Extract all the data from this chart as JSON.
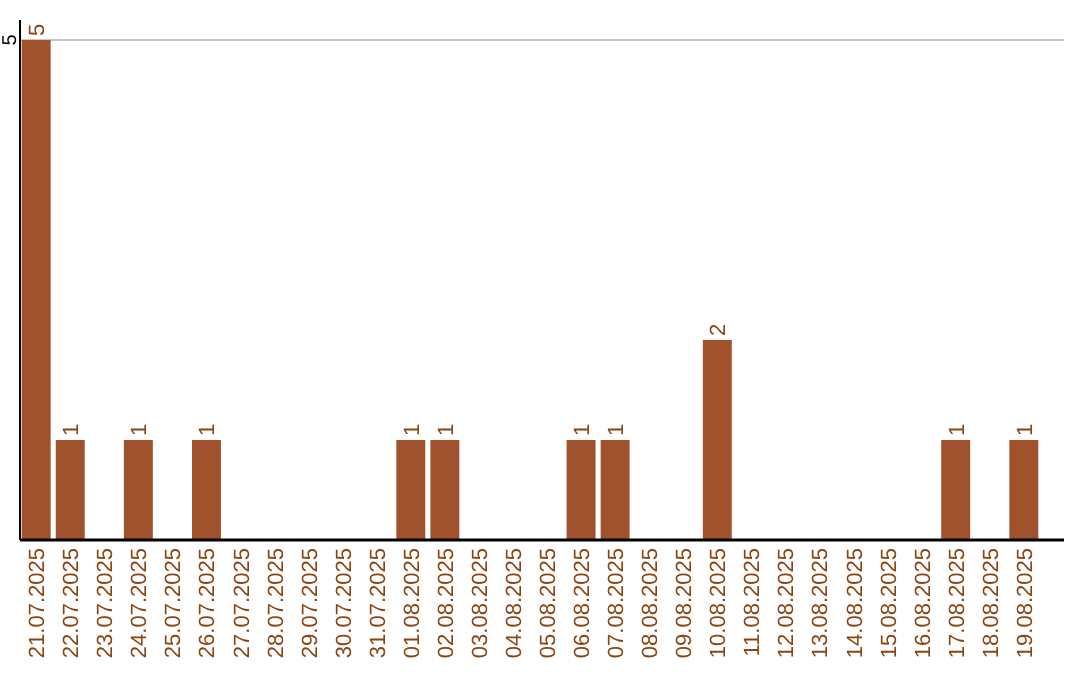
{
  "chart_data": {
    "type": "bar",
    "categories": [
      "21.07.2025",
      "22.07.2025",
      "23.07.2025",
      "24.07.2025",
      "25.07.2025",
      "26.07.2025",
      "27.07.2025",
      "28.07.2025",
      "29.07.2025",
      "30.07.2025",
      "31.07.2025",
      "01.08.2025",
      "02.08.2025",
      "03.08.2025",
      "04.08.2025",
      "05.08.2025",
      "06.08.2025",
      "07.08.2025",
      "08.08.2025",
      "09.08.2025",
      "10.08.2025",
      "11.08.2025",
      "12.08.2025",
      "13.08.2025",
      "14.08.2025",
      "15.08.2025",
      "16.08.2025",
      "17.08.2025",
      "18.08.2025",
      "19.08.2025"
    ],
    "values": [
      5,
      1,
      0,
      1,
      0,
      1,
      0,
      0,
      0,
      0,
      0,
      1,
      1,
      0,
      0,
      0,
      1,
      1,
      0,
      0,
      2,
      0,
      0,
      0,
      0,
      0,
      0,
      1,
      0,
      1
    ],
    "value_labels": [
      "5",
      "1",
      null,
      "1",
      null,
      "1",
      null,
      null,
      null,
      null,
      null,
      "1",
      "1",
      null,
      null,
      null,
      "1",
      "1",
      null,
      null,
      "2",
      null,
      null,
      null,
      null,
      null,
      null,
      "1",
      null,
      "1"
    ],
    "color": "#a0522d",
    "ylim": [
      0,
      5
    ],
    "yticks": [
      5
    ],
    "ref_lines": [
      {
        "axis": "y",
        "value": 5,
        "color": "#c8c8c8"
      }
    ]
  }
}
